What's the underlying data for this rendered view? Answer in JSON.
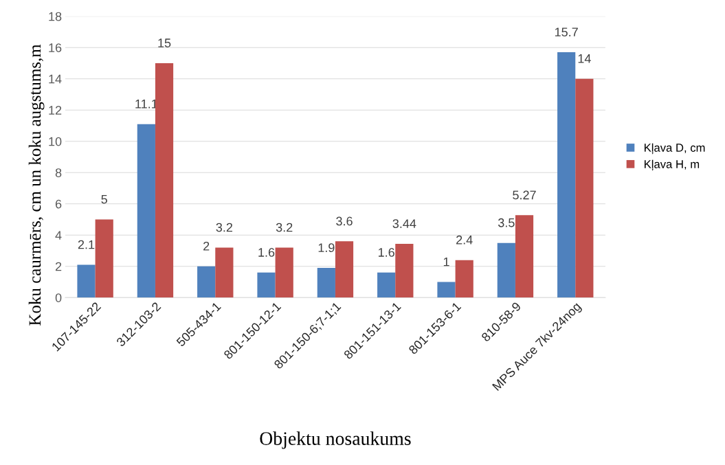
{
  "chart_data": {
    "type": "bar",
    "xlabel": "Objektu nosaukums",
    "ylabel": "Koku caurmērs, cm un koku augstums,m",
    "categories": [
      "107-145-22",
      "312-103-2",
      "505-434-1",
      "801-150-12-1",
      "801-150-6;7-1;1",
      "801-151-13-1",
      "801-153-6-1",
      "810-58-9",
      "MPS Auce 7kv-24nog"
    ],
    "series": [
      {
        "name": "Kļava D, cm",
        "color": "#4f81bd",
        "values": [
          2.1,
          11.1,
          2,
          1.6,
          1.9,
          1.6,
          1,
          3.5,
          15.7
        ]
      },
      {
        "name": "Kļava H, m",
        "color": "#c0504d",
        "values": [
          5,
          15,
          3.2,
          3.2,
          3.6,
          3.44,
          2.4,
          5.27,
          14
        ]
      }
    ],
    "ylim": [
      0,
      18
    ],
    "yticks": [
      0,
      2,
      4,
      6,
      8,
      10,
      12,
      14,
      16,
      18
    ],
    "grid": "y",
    "legend": "right",
    "data_labels": true
  }
}
